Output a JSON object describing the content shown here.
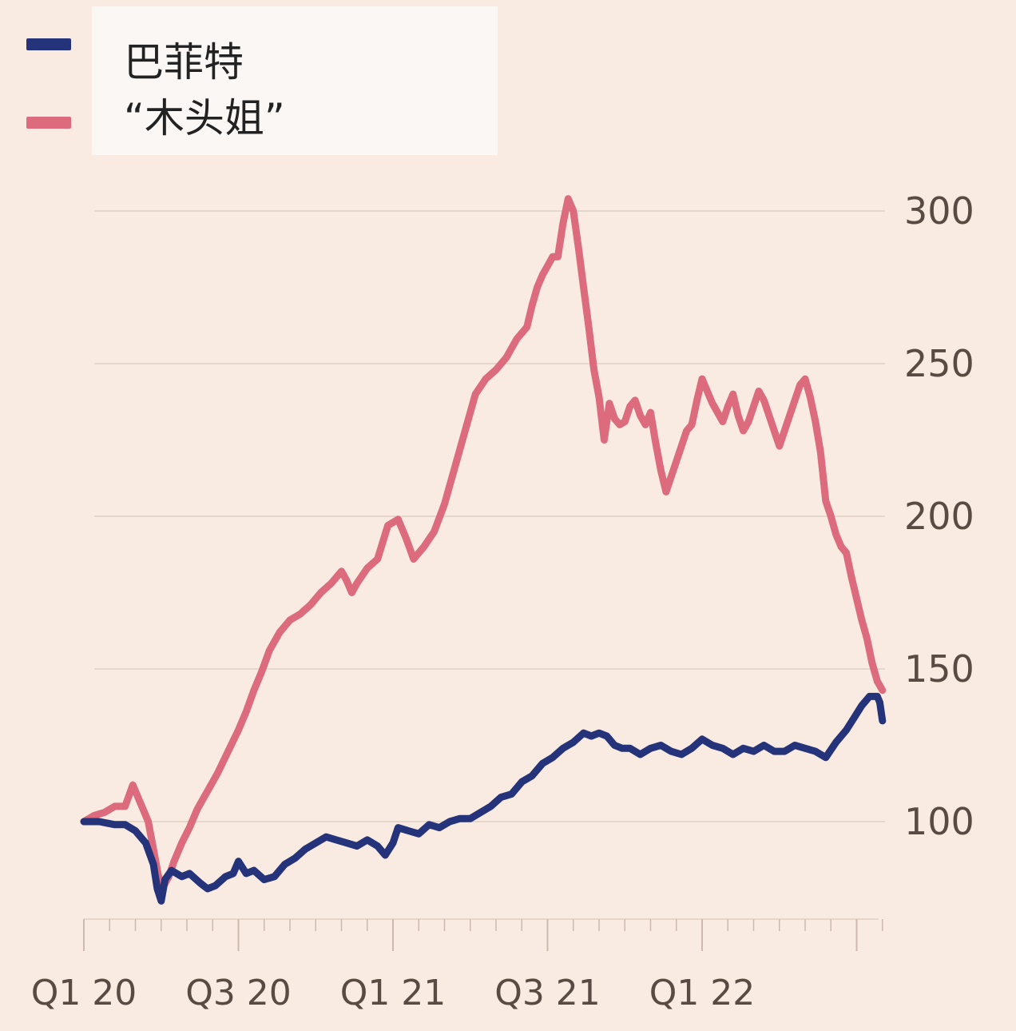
{
  "colors": {
    "background": "#f9ebe2",
    "grid": "#e6d6cc",
    "buffett": "#24337a",
    "wood": "#dc6b7d"
  },
  "legend": {
    "items": [
      {
        "label": "巴菲特",
        "color": "#24337a"
      },
      {
        "label": "“木头姐”",
        "color": "#dc6b7d"
      }
    ]
  },
  "chart_data": {
    "type": "line",
    "y_ticks": [
      "300",
      "250",
      "200",
      "150",
      "100"
    ],
    "x_ticks": [
      "Q1 20",
      "Q3 20",
      "Q1 21",
      "Q3 21",
      "Q1 22"
    ],
    "ylim": [
      70,
      310
    ],
    "grid": true,
    "legend_position": "top-left",
    "series": [
      {
        "name": "巴菲特",
        "color": "#24337a",
        "points": [
          [
            0.0,
            100
          ],
          [
            0.6,
            100
          ],
          [
            1.2,
            99
          ],
          [
            1.6,
            99
          ],
          [
            2.0,
            97
          ],
          [
            2.4,
            93
          ],
          [
            2.7,
            86
          ],
          [
            2.85,
            78
          ],
          [
            3.0,
            74
          ],
          [
            3.15,
            81
          ],
          [
            3.4,
            84
          ],
          [
            3.8,
            82
          ],
          [
            4.1,
            83
          ],
          [
            4.5,
            80
          ],
          [
            4.8,
            78
          ],
          [
            5.1,
            79
          ],
          [
            5.5,
            82
          ],
          [
            5.8,
            83
          ],
          [
            6.0,
            87
          ],
          [
            6.3,
            83
          ],
          [
            6.6,
            84
          ],
          [
            7.0,
            81
          ],
          [
            7.4,
            82
          ],
          [
            7.8,
            86
          ],
          [
            8.2,
            88
          ],
          [
            8.6,
            91
          ],
          [
            9.0,
            93
          ],
          [
            9.4,
            95
          ],
          [
            9.8,
            94
          ],
          [
            10.2,
            93
          ],
          [
            10.6,
            92
          ],
          [
            11.0,
            94
          ],
          [
            11.4,
            92
          ],
          [
            11.7,
            89
          ],
          [
            12.0,
            93
          ],
          [
            12.2,
            98
          ],
          [
            12.6,
            97
          ],
          [
            13.0,
            96
          ],
          [
            13.4,
            99
          ],
          [
            13.8,
            98
          ],
          [
            14.2,
            100
          ],
          [
            14.6,
            101
          ],
          [
            15.0,
            101
          ],
          [
            15.4,
            103
          ],
          [
            15.8,
            105
          ],
          [
            16.2,
            108
          ],
          [
            16.6,
            109
          ],
          [
            17.0,
            113
          ],
          [
            17.4,
            115
          ],
          [
            17.8,
            119
          ],
          [
            18.2,
            121
          ],
          [
            18.6,
            124
          ],
          [
            19.0,
            126
          ],
          [
            19.4,
            129
          ],
          [
            19.7,
            128
          ],
          [
            20.0,
            129
          ],
          [
            20.3,
            128
          ],
          [
            20.6,
            125
          ],
          [
            20.9,
            124
          ],
          [
            21.2,
            124
          ],
          [
            21.6,
            122
          ],
          [
            22.0,
            124
          ],
          [
            22.4,
            125
          ],
          [
            22.8,
            123
          ],
          [
            23.2,
            122
          ],
          [
            23.6,
            124
          ],
          [
            24.0,
            127
          ],
          [
            24.4,
            125
          ],
          [
            24.8,
            124
          ],
          [
            25.2,
            122
          ],
          [
            25.6,
            124
          ],
          [
            26.0,
            123
          ],
          [
            26.4,
            125
          ],
          [
            26.8,
            123
          ],
          [
            27.2,
            123
          ],
          [
            27.6,
            125
          ],
          [
            28.0,
            124
          ],
          [
            28.4,
            123
          ],
          [
            28.8,
            121
          ],
          [
            29.2,
            126
          ],
          [
            29.6,
            130
          ],
          [
            29.9,
            134
          ],
          [
            30.2,
            138
          ],
          [
            30.5,
            141
          ],
          [
            30.8,
            141
          ],
          [
            30.9,
            139
          ],
          [
            31.0,
            133
          ]
        ]
      },
      {
        "name": "“木头姐”",
        "color": "#dc6b7d",
        "points": [
          [
            0.0,
            100
          ],
          [
            0.4,
            102
          ],
          [
            0.8,
            103
          ],
          [
            1.2,
            105
          ],
          [
            1.6,
            105
          ],
          [
            1.9,
            112
          ],
          [
            2.1,
            108
          ],
          [
            2.3,
            104
          ],
          [
            2.5,
            100
          ],
          [
            2.7,
            91
          ],
          [
            2.9,
            82
          ],
          [
            3.1,
            79
          ],
          [
            3.3,
            82
          ],
          [
            3.5,
            87
          ],
          [
            3.8,
            93
          ],
          [
            4.1,
            98
          ],
          [
            4.4,
            104
          ],
          [
            4.8,
            110
          ],
          [
            5.2,
            116
          ],
          [
            5.6,
            123
          ],
          [
            6.0,
            130
          ],
          [
            6.3,
            136
          ],
          [
            6.6,
            143
          ],
          [
            6.9,
            149
          ],
          [
            7.2,
            156
          ],
          [
            7.6,
            162
          ],
          [
            8.0,
            166
          ],
          [
            8.4,
            168
          ],
          [
            8.8,
            171
          ],
          [
            9.2,
            175
          ],
          [
            9.6,
            178
          ],
          [
            10.0,
            182
          ],
          [
            10.2,
            179
          ],
          [
            10.4,
            175
          ],
          [
            10.6,
            178
          ],
          [
            11.0,
            183
          ],
          [
            11.4,
            186
          ],
          [
            11.8,
            197
          ],
          [
            12.2,
            199
          ],
          [
            12.5,
            193
          ],
          [
            12.8,
            186
          ],
          [
            13.2,
            190
          ],
          [
            13.6,
            195
          ],
          [
            14.0,
            204
          ],
          [
            14.4,
            216
          ],
          [
            14.8,
            228
          ],
          [
            15.2,
            240
          ],
          [
            15.6,
            245
          ],
          [
            16.0,
            248
          ],
          [
            16.4,
            252
          ],
          [
            16.8,
            258
          ],
          [
            17.2,
            262
          ],
          [
            17.4,
            269
          ],
          [
            17.6,
            275
          ],
          [
            17.8,
            279
          ],
          [
            18.0,
            282
          ],
          [
            18.2,
            285
          ],
          [
            18.4,
            285
          ],
          [
            18.6,
            296
          ],
          [
            18.8,
            304
          ],
          [
            19.0,
            300
          ],
          [
            19.2,
            288
          ],
          [
            19.4,
            275
          ],
          [
            19.6,
            262
          ],
          [
            19.8,
            248
          ],
          [
            20.0,
            239
          ],
          [
            20.2,
            225
          ],
          [
            20.4,
            237
          ],
          [
            20.6,
            232
          ],
          [
            20.8,
            230
          ],
          [
            21.0,
            231
          ],
          [
            21.2,
            236
          ],
          [
            21.4,
            238
          ],
          [
            21.6,
            233
          ],
          [
            21.8,
            230
          ],
          [
            22.0,
            234
          ],
          [
            22.2,
            224
          ],
          [
            22.4,
            215
          ],
          [
            22.6,
            208
          ],
          [
            22.8,
            213
          ],
          [
            23.0,
            218
          ],
          [
            23.2,
            223
          ],
          [
            23.4,
            228
          ],
          [
            23.6,
            230
          ],
          [
            23.8,
            238
          ],
          [
            24.0,
            245
          ],
          [
            24.2,
            241
          ],
          [
            24.4,
            237
          ],
          [
            24.6,
            234
          ],
          [
            24.8,
            231
          ],
          [
            25.0,
            236
          ],
          [
            25.2,
            240
          ],
          [
            25.4,
            233
          ],
          [
            25.6,
            228
          ],
          [
            25.8,
            231
          ],
          [
            26.0,
            236
          ],
          [
            26.2,
            241
          ],
          [
            26.4,
            238
          ],
          [
            26.6,
            233
          ],
          [
            26.8,
            228
          ],
          [
            27.0,
            223
          ],
          [
            27.2,
            228
          ],
          [
            27.4,
            233
          ],
          [
            27.6,
            238
          ],
          [
            27.8,
            243
          ],
          [
            28.0,
            245
          ],
          [
            28.2,
            239
          ],
          [
            28.4,
            231
          ],
          [
            28.6,
            221
          ],
          [
            28.8,
            205
          ],
          [
            29.0,
            200
          ],
          [
            29.2,
            194
          ],
          [
            29.4,
            190
          ],
          [
            29.6,
            188
          ],
          [
            29.8,
            180
          ],
          [
            30.0,
            173
          ],
          [
            30.2,
            166
          ],
          [
            30.4,
            160
          ],
          [
            30.6,
            152
          ],
          [
            30.8,
            146
          ],
          [
            31.0,
            143
          ]
        ]
      }
    ]
  }
}
